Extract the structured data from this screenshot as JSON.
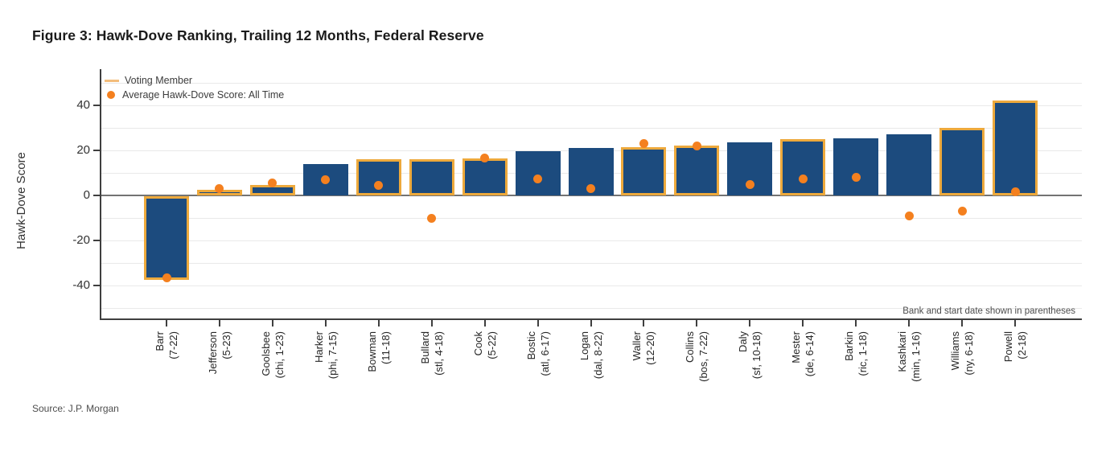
{
  "chart_data": {
    "type": "bar",
    "title": "Figure 3: Hawk-Dove Ranking, Trailing 12 Months, Federal Reserve",
    "ylabel": "Hawk-Dove Score",
    "ylim": [
      -55,
      55
    ],
    "yticks": [
      40,
      20,
      0,
      -20,
      -40
    ],
    "grid_values": [
      50,
      40,
      30,
      20,
      10,
      -10,
      -20,
      -30,
      -40,
      -50
    ],
    "legend": [
      {
        "label": "Voting Member",
        "swatch": "line"
      },
      {
        "label": "Average Hawk-Dove Score: All Time",
        "swatch": "dot"
      }
    ],
    "note": "Bank and start date shown in parentheses",
    "source": "Source: J.P. Morgan",
    "colors": {
      "bar_fill": "#1c4b7e",
      "voting_outline": "#eda93c",
      "dot": "#f4801f"
    },
    "series_note": "bar = Hawk-Dove Score trailing 12 months; dot = Average Hawk-Dove Score all time; golden outline = voting member",
    "members": [
      {
        "label": "Barr",
        "sub": "(7-22)",
        "bar": -37,
        "avg_dot": -36.5,
        "voting_member": true
      },
      {
        "label": "Jefferson",
        "sub": "(5-23)",
        "bar": 2.5,
        "avg_dot": 3,
        "voting_member": true
      },
      {
        "label": "Goolsbee",
        "sub": "(chi, 1-23)",
        "bar": 4.5,
        "avg_dot": 5.5,
        "voting_member": true
      },
      {
        "label": "Harker",
        "sub": "(phi, 7-15)",
        "bar": 14,
        "avg_dot": 7,
        "voting_member": false
      },
      {
        "label": "Bowman",
        "sub": "(11-18)",
        "bar": 16,
        "avg_dot": 4.5,
        "voting_member": true
      },
      {
        "label": "Bullard",
        "sub": "(stl, 4-18)",
        "bar": 16,
        "avg_dot": -10,
        "voting_member": true
      },
      {
        "label": "Cook",
        "sub": "(5-22)",
        "bar": 16.5,
        "avg_dot": 16.5,
        "voting_member": true
      },
      {
        "label": "Bostic",
        "sub": "(atl, 6-17)",
        "bar": 19.5,
        "avg_dot": 7.5,
        "voting_member": false
      },
      {
        "label": "Logan",
        "sub": "(dal, 8-22)",
        "bar": 21,
        "avg_dot": 3,
        "voting_member": false
      },
      {
        "label": "Waller",
        "sub": "(12-20)",
        "bar": 21.5,
        "avg_dot": 23,
        "voting_member": true
      },
      {
        "label": "Collins",
        "sub": "(bos, 7-22)",
        "bar": 22,
        "avg_dot": 22,
        "voting_member": true
      },
      {
        "label": "Daly",
        "sub": "(sf, 10-18)",
        "bar": 23.5,
        "avg_dot": 5,
        "voting_member": false
      },
      {
        "label": "Mester",
        "sub": "(de, 6-14)",
        "bar": 25,
        "avg_dot": 7.5,
        "voting_member": true
      },
      {
        "label": "Barkin",
        "sub": "(ric, 1-18)",
        "bar": 25.5,
        "avg_dot": 8,
        "voting_member": false
      },
      {
        "label": "Kashkari",
        "sub": "(min, 1-16)",
        "bar": 27,
        "avg_dot": -9,
        "voting_member": false
      },
      {
        "label": "Williams",
        "sub": "(ny, 6-18)",
        "bar": 30,
        "avg_dot": -7,
        "voting_member": true
      },
      {
        "label": "Powell",
        "sub": "(2-18)",
        "bar": 42,
        "avg_dot": 1.5,
        "voting_member": true
      }
    ]
  }
}
